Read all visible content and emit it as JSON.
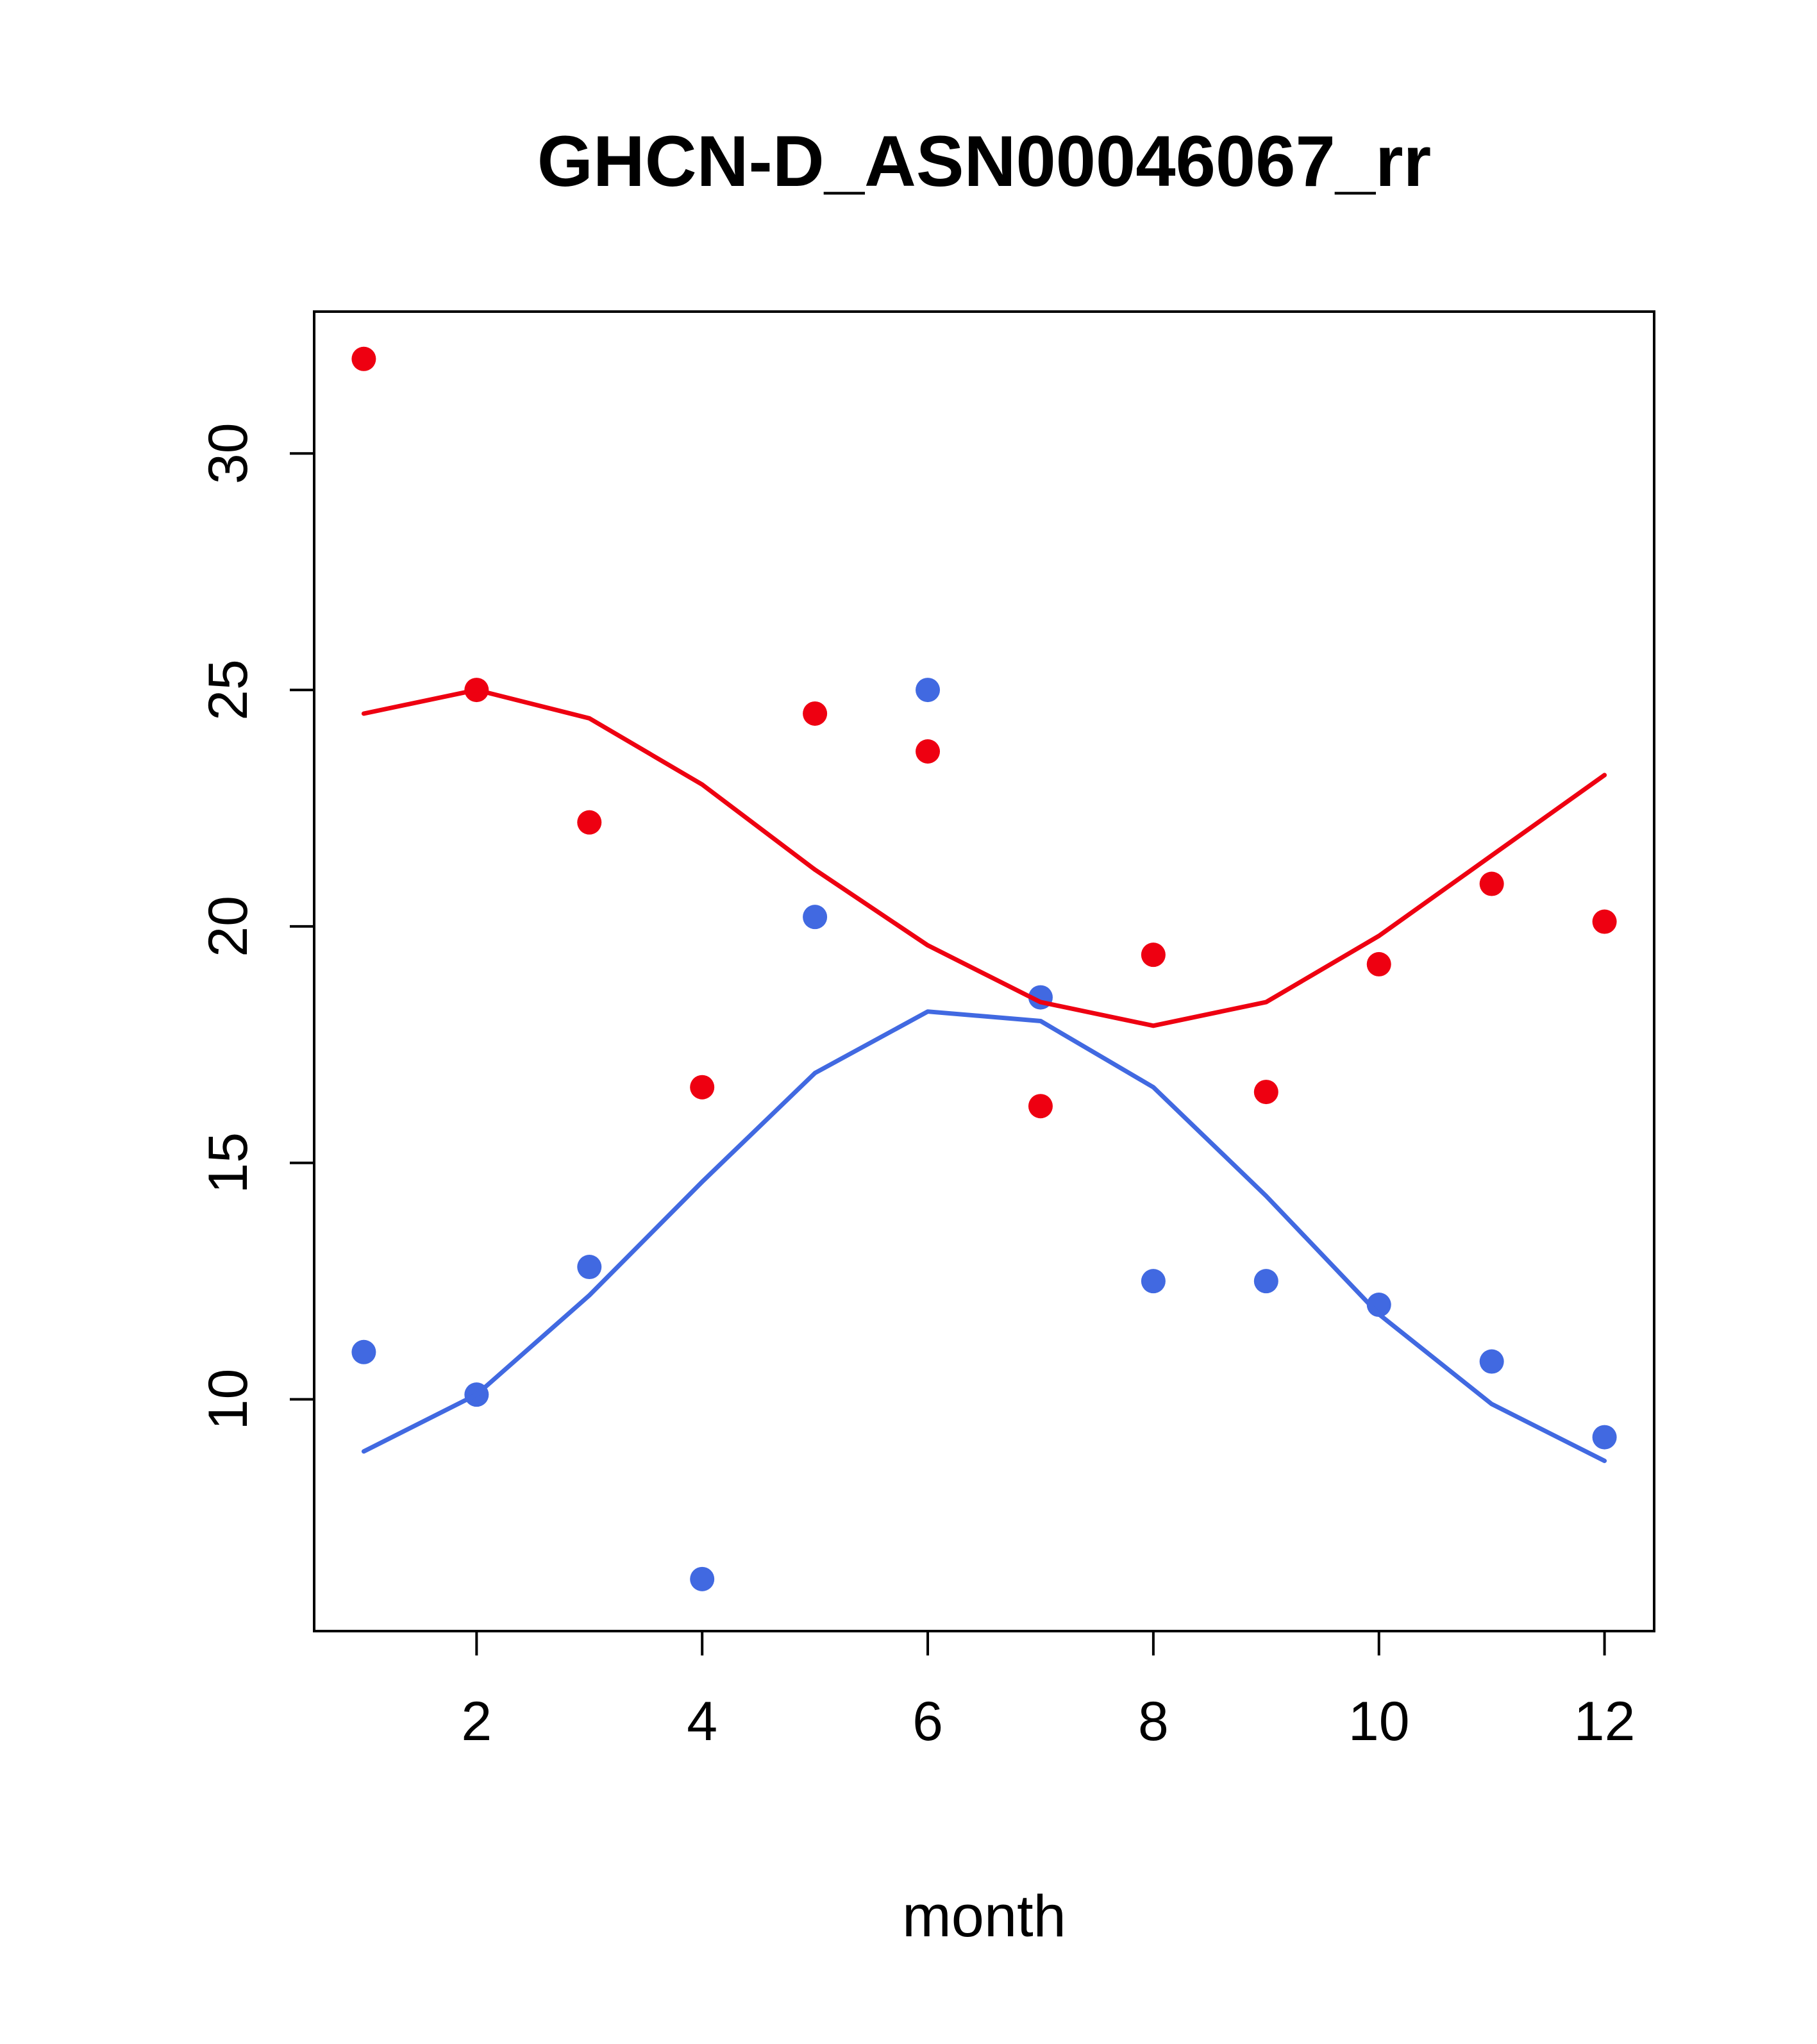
{
  "chart_data": {
    "type": "scatter",
    "title": "GHCN-D_ASN00046067_rr",
    "xlabel": "month",
    "ylabel": "",
    "x": [
      1,
      2,
      3,
      4,
      5,
      6,
      7,
      8,
      9,
      10,
      11,
      12
    ],
    "xlim": [
      0.56,
      12.44
    ],
    "ylim": [
      5.1,
      33.0
    ],
    "xticks": [
      2,
      4,
      6,
      8,
      10,
      12
    ],
    "yticks": [
      10,
      15,
      20,
      25,
      30
    ],
    "grid": false,
    "legend": "none",
    "colors": {
      "red": "#EE0011",
      "blue": "#4169E1",
      "axis": "#000000",
      "background": "#FFFFFF"
    },
    "series": [
      {
        "name": "red-points",
        "kind": "points",
        "color": "#EE0011",
        "values": [
          32.0,
          25.0,
          22.2,
          16.6,
          24.5,
          23.7,
          16.2,
          19.4,
          16.5,
          19.2,
          20.9,
          20.1
        ]
      },
      {
        "name": "blue-points",
        "kind": "points",
        "color": "#4169E1",
        "values": [
          11.0,
          10.1,
          12.8,
          6.2,
          20.2,
          25.0,
          18.5,
          12.5,
          12.5,
          12.0,
          10.8,
          9.2
        ]
      },
      {
        "name": "red-smooth-line",
        "kind": "line",
        "color": "#EE0011",
        "values": [
          24.5,
          25.0,
          24.4,
          23.0,
          21.2,
          19.6,
          18.4,
          17.9,
          18.4,
          19.8,
          21.5,
          23.2
        ]
      },
      {
        "name": "blue-smooth-line",
        "kind": "line",
        "color": "#4169E1",
        "values": [
          8.9,
          10.1,
          12.2,
          14.6,
          16.9,
          18.2,
          18.0,
          16.6,
          14.3,
          11.8,
          9.9,
          8.7
        ]
      }
    ]
  }
}
